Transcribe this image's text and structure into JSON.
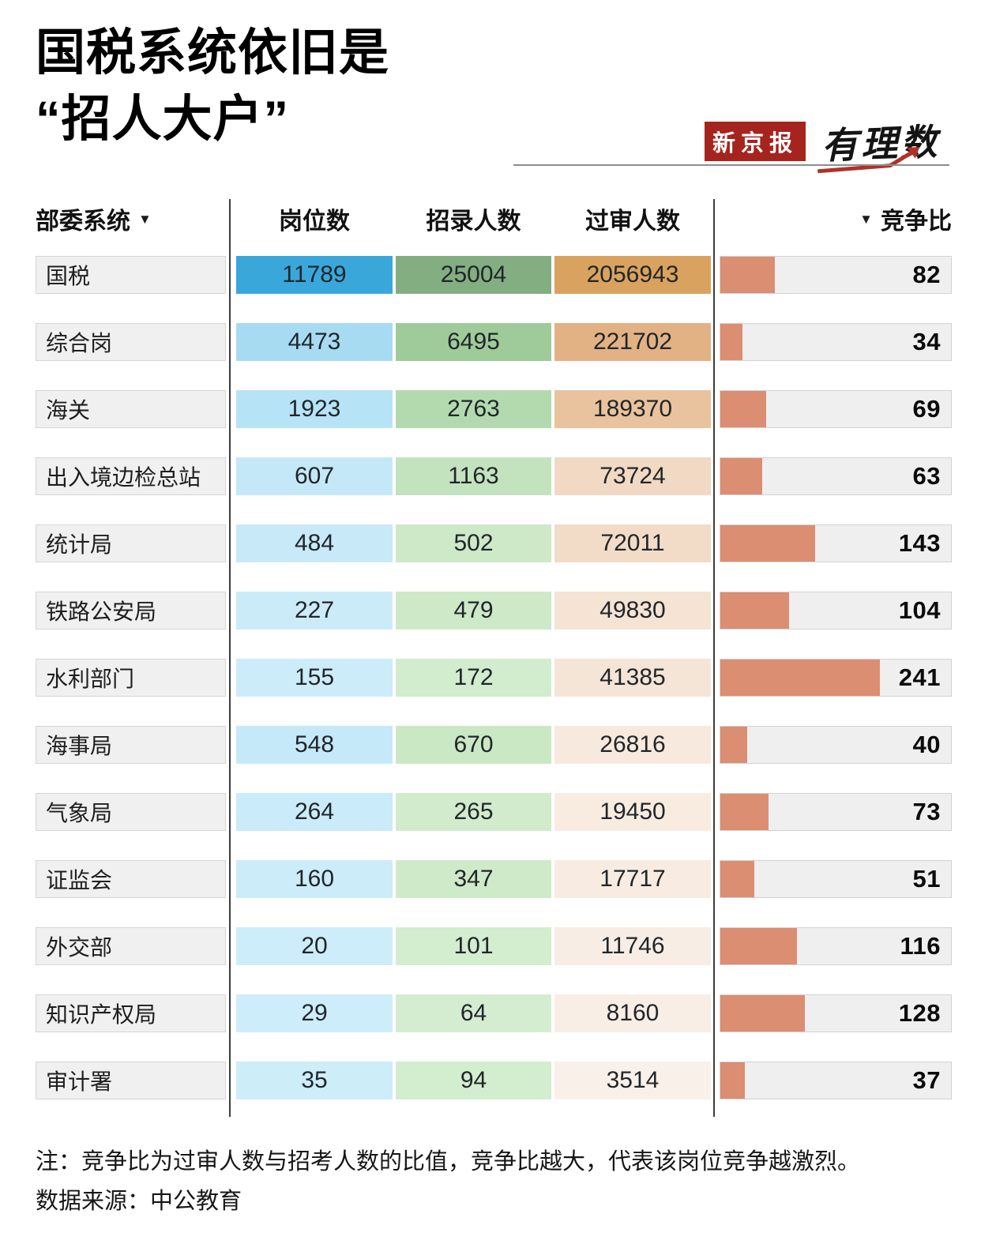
{
  "title": {
    "line1": "国税系统依旧是",
    "line2": "“招人大户”"
  },
  "logo": {
    "brand": "新京报",
    "sub": "有理数"
  },
  "icons": {
    "sort_down": "▼"
  },
  "notes": {
    "line1": "注：竞争比为过审人数与招考人数的比值，竞争比越大，代表该岗位竞争越激烈。",
    "line2": "数据来源：中公教育"
  },
  "chart_data": {
    "type": "table",
    "title": "国税系统依旧是“招人大户”",
    "columns": [
      "部委系统",
      "岗位数",
      "招录人数",
      "过审人数",
      "竞争比"
    ],
    "sorted_columns": [
      "部委系统",
      "竞争比"
    ],
    "ratio_axis_max": 349,
    "legend_position": "none",
    "heatmap_accents": {
      "positions_max": "#3aa7db",
      "recruits_max": "#83ae81",
      "approved_max": "#d9a35f",
      "ratio_bar": "#db8e71",
      "ratio_track": "#efefef",
      "row_label_bg": "#f0f0f0"
    },
    "rows": [
      {
        "system": "国税",
        "positions": 11789,
        "recruits": 25004,
        "approved": 2056943,
        "ratio": 82,
        "colors": {
          "positions": "#3aa7db",
          "recruits": "#83ae81",
          "approved": "#d9a35f"
        }
      },
      {
        "system": "综合岗",
        "positions": 4473,
        "recruits": 6495,
        "approved": 221702,
        "ratio": 34,
        "colors": {
          "positions": "#a6dbf2",
          "recruits": "#9fcb9b",
          "approved": "#e2b285"
        }
      },
      {
        "system": "海关",
        "positions": 1923,
        "recruits": 2763,
        "approved": 189370,
        "ratio": 69,
        "colors": {
          "positions": "#b7e3f6",
          "recruits": "#b3daae",
          "approved": "#e9c39d"
        }
      },
      {
        "system": "出入境边检总站",
        "positions": 607,
        "recruits": 1163,
        "approved": 73724,
        "ratio": 63,
        "colors": {
          "positions": "#c4e8f8",
          "recruits": "#c3e3be",
          "approved": "#f1d9c3"
        }
      },
      {
        "system": "统计局",
        "positions": 484,
        "recruits": 502,
        "approved": 72011,
        "ratio": 143,
        "colors": {
          "positions": "#c7e9f8",
          "recruits": "#cde9c8",
          "approved": "#f2dcc8"
        }
      },
      {
        "system": "铁路公安局",
        "positions": 227,
        "recruits": 479,
        "approved": 49830,
        "ratio": 104,
        "colors": {
          "positions": "#cbebf9",
          "recruits": "#cde9c8",
          "approved": "#f5e3d3"
        }
      },
      {
        "system": "水利部门",
        "positions": 155,
        "recruits": 172,
        "approved": 41385,
        "ratio": 241,
        "colors": {
          "positions": "#ccecf9",
          "recruits": "#d2ecce",
          "approved": "#f5e5d6"
        }
      },
      {
        "system": "海事局",
        "positions": 548,
        "recruits": 670,
        "approved": 26816,
        "ratio": 40,
        "colors": {
          "positions": "#c5e9f8",
          "recruits": "#cbe8c5",
          "approved": "#f7e9dd"
        }
      },
      {
        "system": "气象局",
        "positions": 264,
        "recruits": 265,
        "approved": 19450,
        "ratio": 73,
        "colors": {
          "positions": "#caebf9",
          "recruits": "#d1ebcc",
          "approved": "#f8ece1"
        }
      },
      {
        "system": "证监会",
        "positions": 160,
        "recruits": 347,
        "approved": 17717,
        "ratio": 51,
        "colors": {
          "positions": "#ccecf9",
          "recruits": "#cfeac9",
          "approved": "#f8ece2"
        }
      },
      {
        "system": "外交部",
        "positions": 20,
        "recruits": 101,
        "approved": 11746,
        "ratio": 116,
        "colors": {
          "positions": "#ceedfa",
          "recruits": "#d3edcf",
          "approved": "#f8ede4"
        }
      },
      {
        "system": "知识产权局",
        "positions": 29,
        "recruits": 64,
        "approved": 8160,
        "ratio": 128,
        "colors": {
          "positions": "#ceedfa",
          "recruits": "#d4edd0",
          "approved": "#f9eee6"
        }
      },
      {
        "system": "审计署",
        "positions": 35,
        "recruits": 94,
        "approved": 3514,
        "ratio": 37,
        "colors": {
          "positions": "#cdedf9",
          "recruits": "#d3edcf",
          "approved": "#f9f0e9"
        }
      }
    ]
  }
}
